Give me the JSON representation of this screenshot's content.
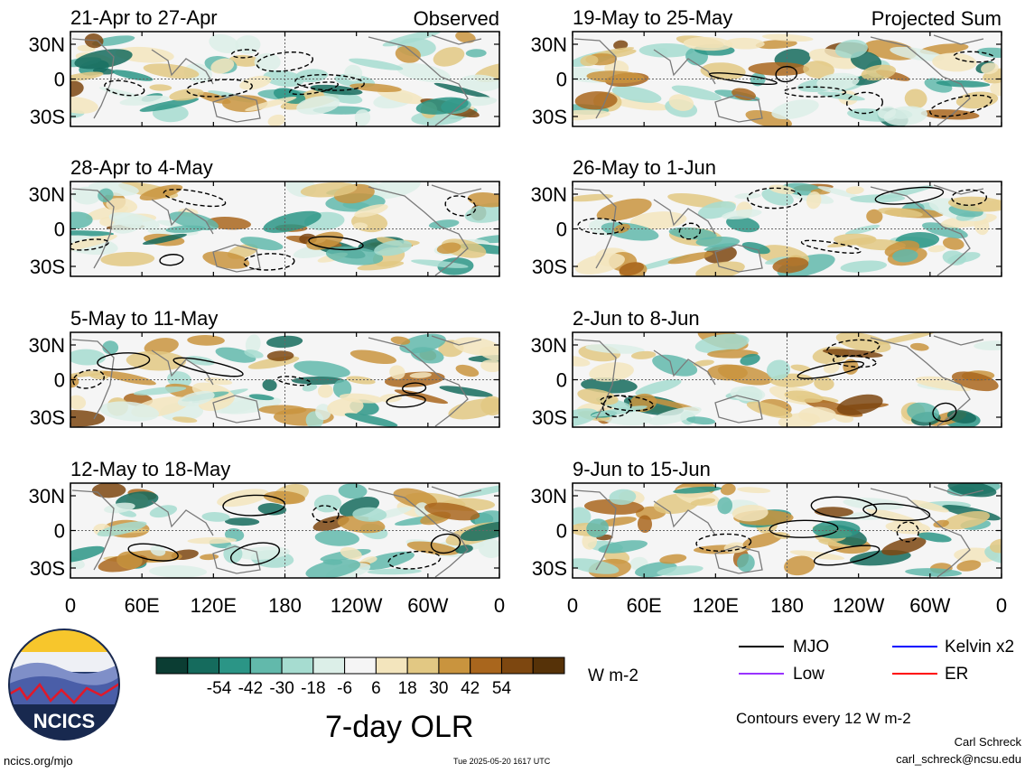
{
  "chart_data": {
    "type": "heatmap",
    "title": "7-day OLR",
    "units": "W m-2",
    "colorbar": {
      "ticks": [
        "-54",
        "-42",
        "-30",
        "-18",
        "-6",
        "6",
        "18",
        "30",
        "42",
        "54"
      ],
      "colors": [
        "#0b3d33",
        "#156b5d",
        "#2b9586",
        "#62b9ab",
        "#a6dcd0",
        "#dcefe8",
        "#f5f5f5",
        "#f3e5bd",
        "#e2c883",
        "#c9943e",
        "#a9661d",
        "#7d4710",
        "#563208"
      ]
    },
    "x_ticks": [
      "0",
      "60E",
      "120E",
      "180",
      "120W",
      "60W",
      "0"
    ],
    "y_ticks": [
      "30N",
      "0",
      "30S"
    ],
    "column_labels": [
      "Observed",
      "Projected Sum"
    ],
    "panels": [
      {
        "period": "21-Apr to 27-Apr",
        "column": "Observed"
      },
      {
        "period": "28-Apr to 4-May",
        "column": "Observed"
      },
      {
        "period": "5-May to 11-May",
        "column": "Observed"
      },
      {
        "period": "12-May to 18-May",
        "column": "Observed"
      },
      {
        "period": "19-May to 25-May",
        "column": "Projected Sum"
      },
      {
        "period": "26-May to 1-Jun",
        "column": "Projected Sum"
      },
      {
        "period": "2-Jun to 8-Jun",
        "column": "Projected Sum"
      },
      {
        "period": "9-Jun to 15-Jun",
        "column": "Projected Sum"
      }
    ],
    "contour_legend": [
      {
        "label": "MJO",
        "color": "#000000"
      },
      {
        "label": "Kelvin x2",
        "color": "#0000ff"
      },
      {
        "label": "Low",
        "color": "#9933ff"
      },
      {
        "label": "ER",
        "color": "#ff0000"
      }
    ],
    "contour_note": "Contours every 12 W m-2"
  },
  "logo_text": "NCICS",
  "footer": {
    "url": "ncics.org/mjo",
    "timestamp": "Tue 2025-05-20 1617 UTC",
    "author": "Carl Schreck",
    "email": "carl_schreck@ncsu.edu"
  }
}
